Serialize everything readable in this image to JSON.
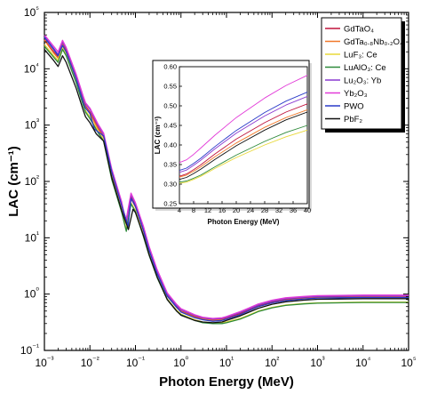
{
  "chart_data": [
    {
      "type": "line",
      "xlabel": "Photon Energy (MeV)",
      "ylabel": "LAC (cm⁻¹)",
      "xscale": "log",
      "yscale": "log",
      "xlim": [
        0.001,
        100000
      ],
      "ylim": [
        0.1,
        100000
      ],
      "x_tick_labels": [
        "10⁻³",
        "10⁻²",
        "10⁻¹",
        "10⁰",
        "10¹",
        "10²",
        "10³",
        "10⁴",
        "10⁵"
      ],
      "y_tick_labels": [
        "10⁻¹",
        "10⁰",
        "10¹",
        "10²",
        "10³",
        "10⁴",
        "10⁵"
      ],
      "legend_position": "top-right",
      "series": [
        {
          "name": "GdTaO₄",
          "color": "#c0143c",
          "x": [
            0.001,
            0.0016,
            0.002,
            0.0025,
            0.003,
            0.005,
            0.0072,
            0.008,
            0.01,
            0.015,
            0.02,
            0.03,
            0.05,
            0.067,
            0.08,
            0.1,
            0.15,
            0.2,
            0.3,
            0.5,
            0.8,
            1,
            2,
            3,
            5,
            8,
            10,
            20,
            30,
            50,
            100,
            200,
            500,
            1000,
            10000,
            100000
          ],
          "y": [
            33000,
            20000,
            16000,
            28000,
            21000,
            7000,
            2800,
            2200,
            1700,
            900,
            620,
            150,
            38,
            17,
            55,
            38,
            14,
            6.2,
            2.4,
            0.95,
            0.6,
            0.5,
            0.4,
            0.37,
            0.35,
            0.36,
            0.38,
            0.45,
            0.52,
            0.62,
            0.72,
            0.8,
            0.85,
            0.88,
            0.9,
            0.9
          ]
        },
        {
          "name": "GdTa₀.₈Nb₀.₂O₄",
          "color": "#f0782a",
          "x": [
            0.001,
            0.0016,
            0.002,
            0.0025,
            0.003,
            0.005,
            0.0072,
            0.008,
            0.01,
            0.015,
            0.02,
            0.03,
            0.05,
            0.067,
            0.08,
            0.1,
            0.15,
            0.2,
            0.3,
            0.5,
            0.8,
            1,
            2,
            3,
            5,
            8,
            10,
            20,
            30,
            50,
            100,
            200,
            500,
            1000,
            10000,
            100000
          ],
          "y": [
            32000,
            19000,
            15500,
            27000,
            20000,
            6800,
            2600,
            2100,
            1600,
            860,
            600,
            140,
            36,
            16,
            50,
            35,
            13,
            5.9,
            2.3,
            0.92,
            0.58,
            0.49,
            0.39,
            0.36,
            0.34,
            0.35,
            0.36,
            0.43,
            0.5,
            0.6,
            0.7,
            0.78,
            0.83,
            0.86,
            0.88,
            0.88
          ]
        },
        {
          "name": "LuF₃: Ce",
          "color": "#e8d838",
          "x": [
            0.001,
            0.0016,
            0.002,
            0.0025,
            0.003,
            0.005,
            0.0072,
            0.008,
            0.01,
            0.015,
            0.02,
            0.03,
            0.05,
            0.063,
            0.08,
            0.1,
            0.15,
            0.2,
            0.3,
            0.5,
            0.8,
            1,
            2,
            3,
            5,
            8,
            10,
            20,
            30,
            50,
            100,
            200,
            500,
            1000,
            10000,
            100000
          ],
          "y": [
            27000,
            17000,
            14000,
            24000,
            18000,
            6000,
            2300,
            1800,
            1400,
            780,
            540,
            120,
            30,
            14,
            42,
            30,
            11,
            5.1,
            2.0,
            0.82,
            0.52,
            0.44,
            0.35,
            0.32,
            0.31,
            0.31,
            0.32,
            0.37,
            0.42,
            0.5,
            0.58,
            0.64,
            0.68,
            0.7,
            0.72,
            0.72
          ]
        },
        {
          "name": "LuAlO₃: Ce",
          "color": "#2e8a3a",
          "x": [
            0.001,
            0.0016,
            0.002,
            0.0025,
            0.003,
            0.005,
            0.0072,
            0.008,
            0.01,
            0.015,
            0.02,
            0.03,
            0.05,
            0.063,
            0.08,
            0.1,
            0.15,
            0.2,
            0.3,
            0.5,
            0.8,
            1,
            2,
            3,
            5,
            8,
            10,
            20,
            30,
            50,
            100,
            200,
            500,
            1000,
            10000,
            100000
          ],
          "y": [
            25000,
            16000,
            13000,
            22000,
            17000,
            5600,
            2200,
            1700,
            1300,
            740,
            520,
            110,
            28,
            13,
            40,
            29,
            10.5,
            4.9,
            1.95,
            0.8,
            0.5,
            0.43,
            0.34,
            0.31,
            0.3,
            0.3,
            0.31,
            0.36,
            0.41,
            0.49,
            0.57,
            0.63,
            0.67,
            0.69,
            0.71,
            0.71
          ]
        },
        {
          "name": "Lu₂O₃: Yb",
          "color": "#8a3ad0",
          "x": [
            0.001,
            0.0016,
            0.002,
            0.0025,
            0.003,
            0.005,
            0.0072,
            0.008,
            0.01,
            0.015,
            0.02,
            0.03,
            0.05,
            0.063,
            0.08,
            0.1,
            0.15,
            0.2,
            0.3,
            0.5,
            0.8,
            1,
            2,
            3,
            5,
            8,
            10,
            20,
            30,
            50,
            100,
            200,
            500,
            1000,
            10000,
            100000
          ],
          "y": [
            38000,
            23000,
            18000,
            30000,
            23000,
            7600,
            3000,
            2400,
            1900,
            980,
            680,
            160,
            40,
            18,
            58,
            40,
            15,
            6.6,
            2.55,
            1.0,
            0.63,
            0.53,
            0.42,
            0.38,
            0.36,
            0.37,
            0.39,
            0.47,
            0.54,
            0.64,
            0.75,
            0.83,
            0.88,
            0.91,
            0.93,
            0.93
          ]
        },
        {
          "name": "Yb₂O₃",
          "color": "#e23ad8",
          "x": [
            0.001,
            0.0016,
            0.002,
            0.0025,
            0.003,
            0.005,
            0.0072,
            0.008,
            0.01,
            0.015,
            0.02,
            0.03,
            0.05,
            0.061,
            0.08,
            0.1,
            0.15,
            0.2,
            0.3,
            0.5,
            0.8,
            1,
            2,
            3,
            5,
            8,
            10,
            20,
            30,
            50,
            100,
            200,
            500,
            1000,
            10000,
            100000
          ],
          "y": [
            40000,
            25000,
            20000,
            32000,
            24000,
            8000,
            3200,
            2500,
            2000,
            1050,
            720,
            170,
            43,
            19,
            62,
            42,
            16,
            7.0,
            2.7,
            1.05,
            0.66,
            0.55,
            0.43,
            0.39,
            0.37,
            0.38,
            0.4,
            0.49,
            0.56,
            0.67,
            0.78,
            0.86,
            0.91,
            0.94,
            0.96,
            0.96
          ]
        },
        {
          "name": "PWO",
          "color": "#2a3ac8",
          "x": [
            0.001,
            0.0016,
            0.002,
            0.0025,
            0.003,
            0.005,
            0.0072,
            0.008,
            0.01,
            0.0125,
            0.02,
            0.03,
            0.05,
            0.069,
            0.08,
            0.1,
            0.15,
            0.2,
            0.3,
            0.5,
            0.8,
            1,
            2,
            3,
            5,
            8,
            10,
            20,
            30,
            50,
            100,
            200,
            500,
            1000,
            10000,
            100000
          ],
          "y": [
            36000,
            22000,
            17000,
            26000,
            20000,
            6600,
            2500,
            2000,
            1600,
            850,
            640,
            150,
            37,
            16,
            50,
            36,
            13.5,
            6.0,
            2.3,
            0.92,
            0.58,
            0.48,
            0.38,
            0.35,
            0.33,
            0.34,
            0.36,
            0.43,
            0.5,
            0.6,
            0.7,
            0.77,
            0.82,
            0.85,
            0.87,
            0.87
          ]
        },
        {
          "name": "PbF₂",
          "color": "#111111",
          "x": [
            0.001,
            0.0016,
            0.002,
            0.0025,
            0.003,
            0.005,
            0.0072,
            0.008,
            0.01,
            0.0138,
            0.02,
            0.03,
            0.05,
            0.07,
            0.088,
            0.1,
            0.15,
            0.2,
            0.3,
            0.5,
            0.8,
            1,
            2,
            3,
            5,
            8,
            10,
            20,
            30,
            50,
            100,
            200,
            500,
            1000,
            10000,
            100000
          ],
          "y": [
            22000,
            14000,
            11000,
            17000,
            13000,
            4500,
            1800,
            1400,
            1100,
            700,
            520,
            120,
            30,
            14,
            32,
            28,
            11,
            5.0,
            2.0,
            0.8,
            0.5,
            0.42,
            0.34,
            0.32,
            0.31,
            0.32,
            0.34,
            0.41,
            0.47,
            0.56,
            0.66,
            0.73,
            0.78,
            0.81,
            0.83,
            0.83
          ]
        }
      ]
    },
    {
      "type": "line",
      "xlabel": "Photon Energy (MeV)",
      "ylabel": "LAC (cm⁻¹)",
      "xlim": [
        4,
        40
      ],
      "ylim": [
        0.25,
        0.6
      ],
      "xticks": [
        4,
        8,
        12,
        16,
        20,
        24,
        28,
        32,
        36,
        40
      ],
      "yticks": [
        0.25,
        0.3,
        0.35,
        0.4,
        0.45,
        0.5,
        0.55,
        0.6
      ],
      "x_tick_labels": [
        "4",
        "8",
        "12",
        "16",
        "20",
        "24",
        "28",
        "32",
        "36",
        "40"
      ],
      "y_tick_labels": [
        "0.25",
        "0.30",
        "0.35",
        "0.40",
        "0.45",
        "0.50",
        "0.55",
        "0.60"
      ],
      "series": [
        {
          "name": "GdTaO₄",
          "color": "#c0143c",
          "x": [
            4,
            6,
            8,
            10,
            14,
            20,
            28,
            34,
            40
          ],
          "y": [
            0.32,
            0.326,
            0.337,
            0.349,
            0.377,
            0.415,
            0.457,
            0.484,
            0.505
          ]
        },
        {
          "name": "GdTa₀.₈Nb₀.₂O₄",
          "color": "#f0782a",
          "x": [
            4,
            6,
            8,
            10,
            14,
            20,
            28,
            34,
            40
          ],
          "y": [
            0.318,
            0.323,
            0.333,
            0.344,
            0.37,
            0.405,
            0.445,
            0.47,
            0.49
          ]
        },
        {
          "name": "LuF₃: Ce",
          "color": "#e8d838",
          "x": [
            4,
            6,
            8,
            10,
            14,
            20,
            28,
            34,
            40
          ],
          "y": [
            0.302,
            0.305,
            0.312,
            0.32,
            0.34,
            0.368,
            0.4,
            0.421,
            0.438
          ]
        },
        {
          "name": "LuAlO₃: Ce",
          "color": "#2e8a3a",
          "x": [
            4,
            6,
            8,
            10,
            14,
            20,
            28,
            34,
            40
          ],
          "y": [
            0.305,
            0.308,
            0.315,
            0.323,
            0.344,
            0.374,
            0.409,
            0.432,
            0.45
          ]
        },
        {
          "name": "Lu₂O₃: Yb",
          "color": "#8a3ad0",
          "x": [
            4,
            6,
            8,
            10,
            14,
            20,
            28,
            34,
            40
          ],
          "y": [
            0.33,
            0.336,
            0.348,
            0.361,
            0.39,
            0.43,
            0.474,
            0.502,
            0.524
          ]
        },
        {
          "name": "Yb₂O₃",
          "color": "#e23ad8",
          "x": [
            4,
            6,
            8,
            10,
            14,
            20,
            28,
            34,
            40
          ],
          "y": [
            0.355,
            0.362,
            0.376,
            0.392,
            0.425,
            0.47,
            0.52,
            0.552,
            0.578
          ]
        },
        {
          "name": "PWO",
          "color": "#2a3ac8",
          "x": [
            4,
            6,
            8,
            10,
            14,
            20,
            28,
            34,
            40
          ],
          "y": [
            0.335,
            0.341,
            0.353,
            0.366,
            0.396,
            0.437,
            0.483,
            0.512,
            0.535
          ]
        },
        {
          "name": "PbF₂",
          "color": "#111111",
          "x": [
            4,
            6,
            8,
            10,
            14,
            20,
            28,
            34,
            40
          ],
          "y": [
            0.312,
            0.317,
            0.327,
            0.338,
            0.363,
            0.398,
            0.438,
            0.464,
            0.484
          ]
        }
      ]
    }
  ]
}
